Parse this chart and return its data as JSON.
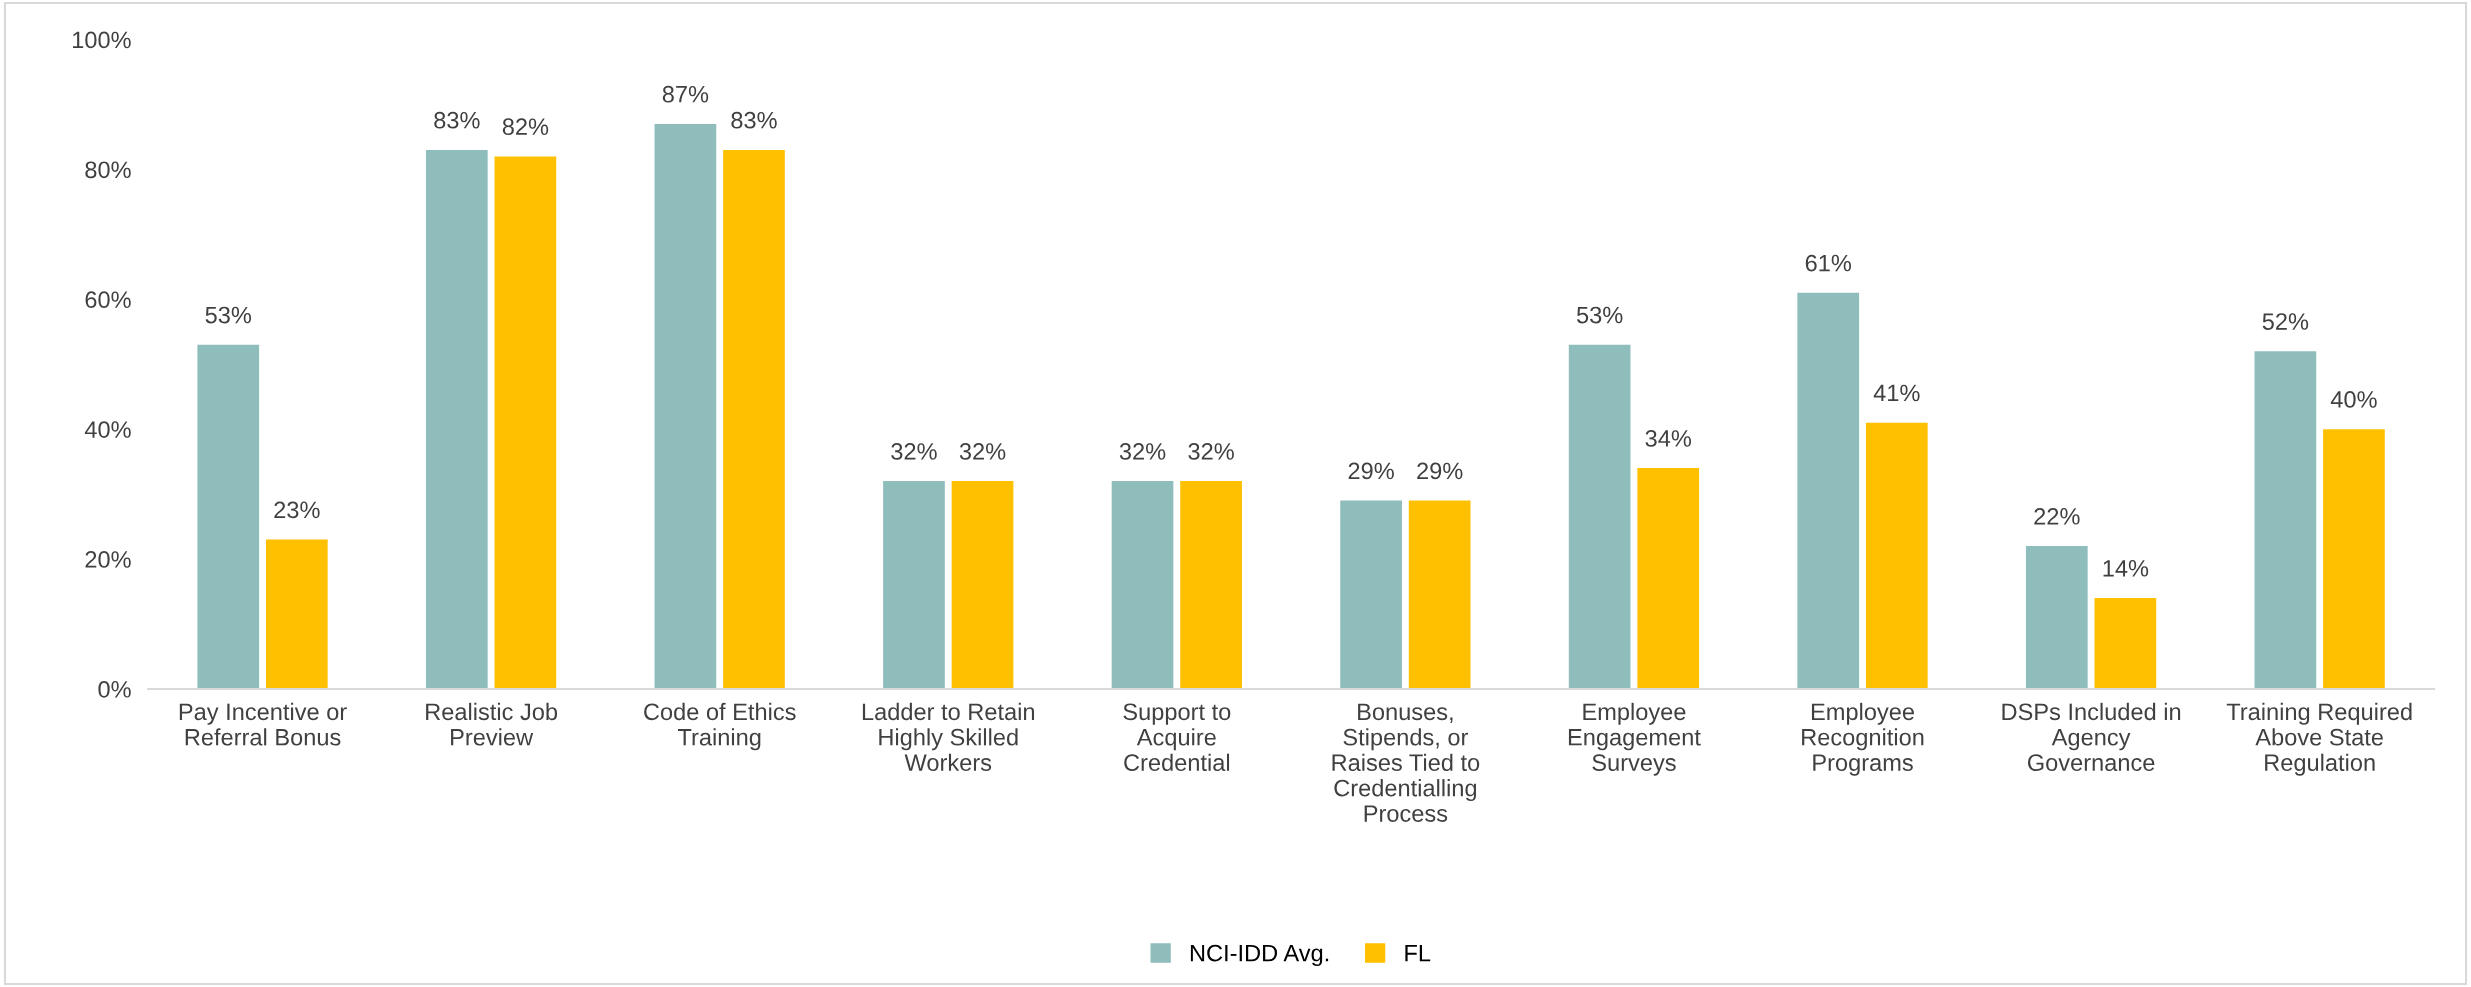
{
  "chart_data": {
    "type": "bar",
    "categories": [
      "Pay Incentive or\nReferral Bonus",
      "Realistic Job\nPreview",
      "Code of Ethics\nTraining",
      "Ladder to Retain\nHighly Skilled\nWorkers",
      "Support to\nAcquire\nCredential",
      "Bonuses,\nStipends, or\nRaises Tied to\nCredentialling\nProcess",
      "Employee\nEngagement\nSurveys",
      "Employee\nRecognition\nPrograms",
      "DSPs Included in\nAgency\nGovernance",
      "Training Required\nAbove State\nRegulation"
    ],
    "series": [
      {
        "name": "NCI-IDD Avg.",
        "color": "#8fbdbc",
        "values": [
          53,
          83,
          87,
          32,
          32,
          29,
          53,
          61,
          22,
          52
        ],
        "value_labels": [
          "53%",
          "83%",
          "87%",
          "32%",
          "32%",
          "29%",
          "53%",
          "61%",
          "22%",
          "52%"
        ]
      },
      {
        "name": "FL",
        "color": "#ffc000",
        "values": [
          23,
          82,
          83,
          32,
          32,
          29,
          34,
          41,
          14,
          40
        ],
        "value_labels": [
          "23%",
          "82%",
          "83%",
          "32%",
          "32%",
          "29%",
          "34%",
          "41%",
          "14%",
          "40%"
        ]
      }
    ],
    "ylim": [
      0,
      100
    ],
    "yticks": [
      {
        "value": 0,
        "label": "0%"
      },
      {
        "value": 20,
        "label": "20%"
      },
      {
        "value": 40,
        "label": "40%"
      },
      {
        "value": 60,
        "label": "60%"
      },
      {
        "value": 80,
        "label": "80%"
      },
      {
        "value": 100,
        "label": "100%"
      }
    ],
    "legend": "bottom",
    "grid": false
  }
}
